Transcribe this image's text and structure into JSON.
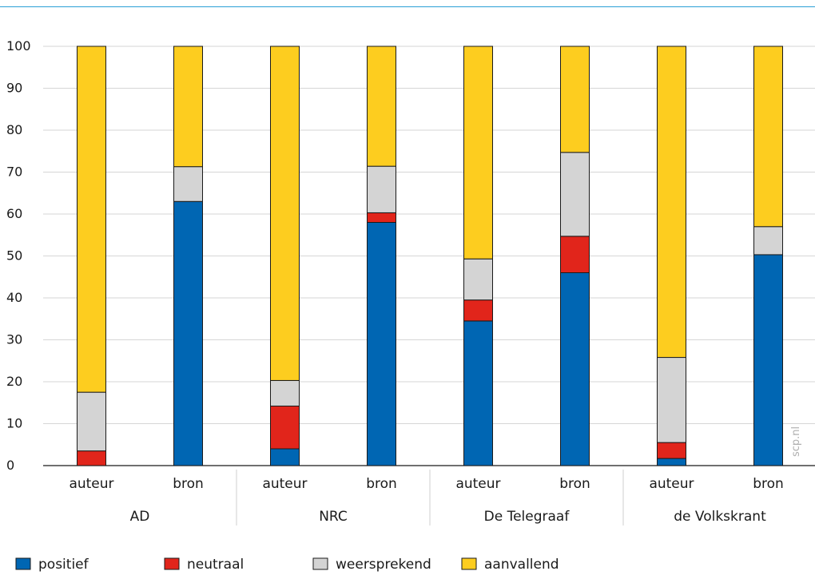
{
  "chart_data": {
    "type": "bar",
    "stacked": true,
    "ylim": [
      0,
      100
    ],
    "yticks": [
      0,
      10,
      20,
      30,
      40,
      50,
      60,
      70,
      80,
      90,
      100
    ],
    "categories": [
      "auteur",
      "bron",
      "auteur",
      "bron",
      "auteur",
      "bron",
      "auteur",
      "bron"
    ],
    "groups": [
      "AD",
      "NRC",
      "De Telegraaf",
      "de Volkskrant"
    ],
    "series": [
      {
        "name": "positief",
        "color": "#0066b3",
        "values": [
          0,
          63,
          4,
          58,
          34.5,
          46,
          1.7,
          50.3
        ]
      },
      {
        "name": "neutraal",
        "color": "#e1251b",
        "values": [
          3.5,
          0,
          10.2,
          2.3,
          5,
          8.7,
          3.8,
          0
        ]
      },
      {
        "name": "weersprekend",
        "color": "#d4d4d4",
        "values": [
          14,
          8.3,
          6.1,
          11.1,
          9.8,
          20,
          20.3,
          6.7
        ]
      },
      {
        "name": "aanvallend",
        "color": "#fdcd1f",
        "values": [
          82.5,
          28.7,
          79.7,
          28.6,
          50.7,
          25.3,
          74.2,
          43
        ]
      }
    ],
    "grid": true,
    "legend_position": "bottom-left",
    "watermark": "scp.nl"
  }
}
